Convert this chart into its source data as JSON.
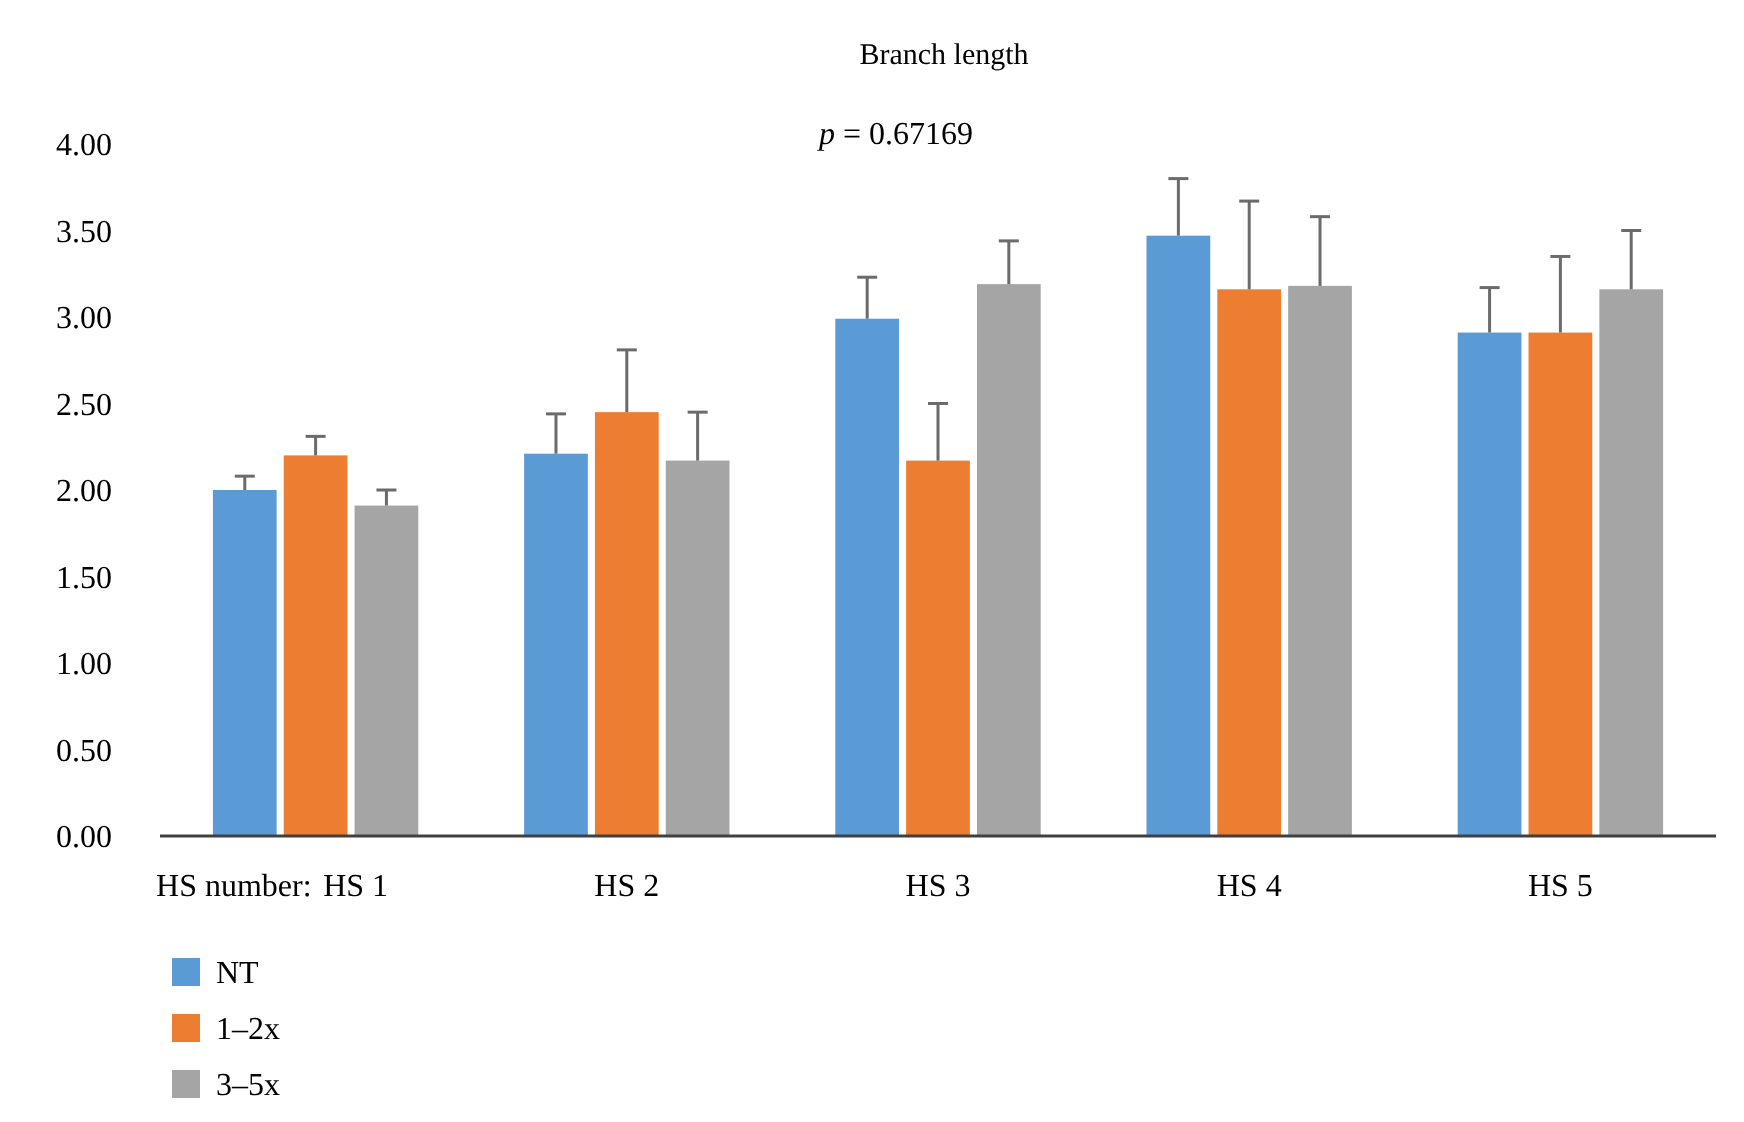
{
  "chart_data": {
    "type": "bar",
    "title": "Branch length",
    "xlabel": "HS number:",
    "annotations": [
      "p = 0.67169"
    ],
    "categories": [
      "HS 1",
      "HS 2",
      "HS 3",
      "HS 4",
      "HS 5"
    ],
    "series": [
      {
        "name": "NT",
        "color": "#5b9bd5",
        "values": [
          2.0,
          2.21,
          2.99,
          3.47,
          2.91
        ],
        "errors": [
          [
            2.0,
            2.08
          ],
          [
            2.21,
            2.44
          ],
          [
            2.99,
            3.23
          ],
          [
            3.47,
            3.8
          ],
          [
            2.91,
            3.17
          ]
        ]
      },
      {
        "name": "1–2x",
        "color": "#ed7d31",
        "values": [
          2.2,
          2.45,
          2.17,
          3.16,
          2.91
        ],
        "errors": [
          [
            2.2,
            2.31
          ],
          [
            2.45,
            2.81
          ],
          [
            2.17,
            2.5
          ],
          [
            3.16,
            3.67
          ],
          [
            2.91,
            3.35
          ]
        ]
      },
      {
        "name": "3–5x",
        "color": "#a5a5a5",
        "values": [
          1.91,
          2.17,
          3.19,
          3.18,
          3.16
        ],
        "errors": [
          [
            1.91,
            2.0
          ],
          [
            2.17,
            2.45
          ],
          [
            3.19,
            3.44
          ],
          [
            3.18,
            3.58
          ],
          [
            3.16,
            3.5
          ]
        ]
      }
    ],
    "ylim": [
      0,
      4
    ],
    "yticks": [
      {
        "value": 0,
        "label": "0.00"
      },
      {
        "value": 0.5,
        "label": "0.50"
      },
      {
        "value": 1,
        "label": "1.00"
      },
      {
        "value": 1.5,
        "label": "1.50"
      },
      {
        "value": 2,
        "label": "2.00"
      },
      {
        "value": 2.5,
        "label": "2.50"
      },
      {
        "value": 3,
        "label": "3.00"
      },
      {
        "value": 3.5,
        "label": "3.50"
      },
      {
        "value": 4,
        "label": "4.00"
      }
    ],
    "grid": false,
    "legend": "bottom left"
  }
}
